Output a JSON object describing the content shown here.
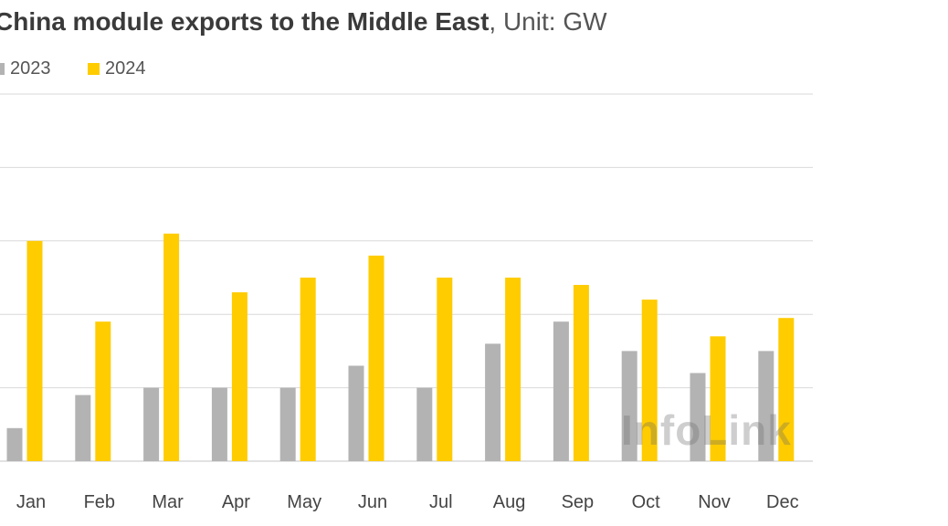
{
  "title": {
    "bold": "China module exports to the Middle East",
    "unit": ", Unit: GW"
  },
  "watermark": "InfoLink",
  "colors": {
    "series_2023": "#b3b3b3",
    "series_2024": "#ffcc00",
    "grid": "#d9d9d9"
  },
  "chart_data": {
    "type": "bar",
    "title": "China module exports to the Middle East, Unit: GW",
    "categories": [
      "Jan",
      "Feb",
      "Mar",
      "Apr",
      "May",
      "Jun",
      "Jul",
      "Aug",
      "Sep",
      "Oct",
      "Nov",
      "Dec"
    ],
    "series": [
      {
        "name": "2023",
        "values": [
          0.45,
          0.9,
          1.0,
          1.0,
          1.0,
          1.3,
          1.0,
          1.6,
          1.9,
          1.5,
          1.2,
          1.5
        ]
      },
      {
        "name": "2024",
        "values": [
          3.0,
          1.9,
          3.1,
          2.3,
          2.5,
          2.8,
          2.5,
          2.5,
          2.4,
          2.2,
          1.7,
          1.95
        ]
      }
    ],
    "ylim": [
      0,
      5
    ],
    "grid": true,
    "legend": "top-left"
  }
}
